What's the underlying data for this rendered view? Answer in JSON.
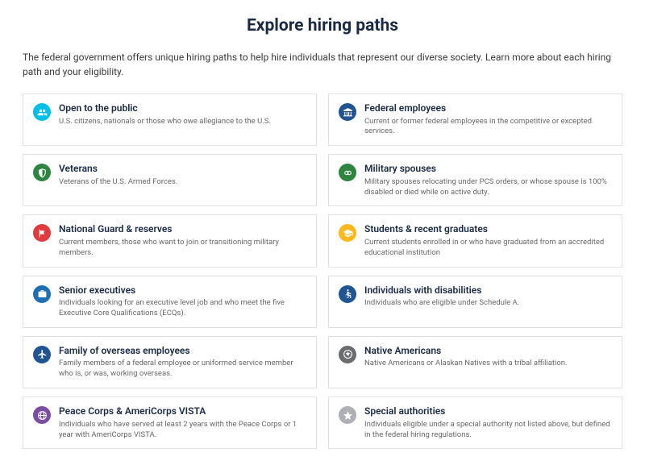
{
  "title": "Explore hiring paths",
  "intro": "The federal government offers unique hiring paths to help hire individuals that represent our diverse society. Learn more about each hiring path and your eligibility.",
  "colors": {
    "cyan": "#02bfe7",
    "navy": "#205493",
    "green": "#2e8540",
    "red": "#e13b3d",
    "gold": "#fdb81e",
    "blue": "#1f6fb2",
    "purple": "#7b4ea1",
    "gray": "#aeb0b5",
    "graydark": "#6b6d70"
  },
  "cards": [
    {
      "id": "open-to-public",
      "icon": "people",
      "color": "cyan",
      "title": "Open to the public",
      "desc": "U.S. citizens, nationals or those who owe allegiance to the U.S."
    },
    {
      "id": "federal-employees",
      "icon": "building",
      "color": "navy",
      "title": "Federal employees",
      "desc": "Current or former federal employees in the competitive or excepted services."
    },
    {
      "id": "veterans",
      "icon": "shield",
      "color": "green",
      "title": "Veterans",
      "desc": "Veterans of the U.S. Armed Forces."
    },
    {
      "id": "military-spouses",
      "icon": "rings",
      "color": "green",
      "title": "Military spouses",
      "desc": "Military spouses relocating under PCS orders, or whose spouse is 100% disabled or died while on active duty."
    },
    {
      "id": "national-guard",
      "icon": "flag",
      "color": "red",
      "title": "National Guard & reserves",
      "desc": "Current members, those who want to join or transitioning military members."
    },
    {
      "id": "students",
      "icon": "cap",
      "color": "gold",
      "title": "Students & recent graduates",
      "desc": "Current students enrolled in or who have graduated from an accredited educational institution"
    },
    {
      "id": "senior-executives",
      "icon": "briefcase",
      "color": "blue",
      "title": "Senior executives",
      "desc": "Individuals looking for an executive level job and who meet the five Executive Core Qualifications (ECQs)."
    },
    {
      "id": "disabilities",
      "icon": "accessibility",
      "color": "navy",
      "title": "Individuals with disabilities",
      "desc": "Individuals who are eligible under Schedule A."
    },
    {
      "id": "family-overseas",
      "icon": "plane",
      "color": "navy",
      "title": "Family of overseas employees",
      "desc": "Family members of a federal employee or uniformed service member who is, or was, working overseas."
    },
    {
      "id": "native-americans",
      "icon": "seal",
      "color": "graydark",
      "title": "Native Americans",
      "desc": "Native Americans or Alaskan Natives with a tribal affiliation."
    },
    {
      "id": "peace-corps",
      "icon": "globe",
      "color": "purple",
      "title": "Peace Corps & AmeriCorps VISTA",
      "desc": "Individuals who have served at least 2 years with the Peace Corps or 1 year with AmeriCorps VISTA."
    },
    {
      "id": "special-authorities",
      "icon": "star",
      "color": "gray",
      "title": "Special authorities",
      "desc": "Individuals eligible under a special authority not listed above, but defined in the federal hiring regulations."
    }
  ]
}
